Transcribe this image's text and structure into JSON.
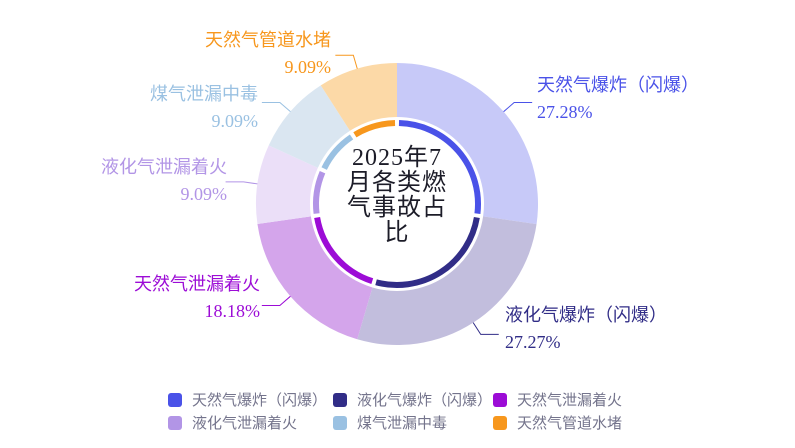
{
  "page": {
    "background": "#ffffff"
  },
  "chart_data": {
    "type": "pie",
    "subtype": "donut",
    "title": "2025年7月各类燃气事故占比",
    "title_lines": [
      "2025年7",
      "月各类燃",
      "气事故占",
      "比"
    ],
    "title_color": "#1c1c28",
    "legend_position": "bottom",
    "legend_text_color": "#74748c",
    "start_angle_deg": 0,
    "clockwise": true,
    "series": [
      {
        "name": "天然气爆炸（闪爆）",
        "value": 27.28,
        "pct_label": "27.28%",
        "color": "#4a52e8",
        "pastel": "#c7c9f8"
      },
      {
        "name": "液化气爆炸（闪爆）",
        "value": 27.27,
        "pct_label": "27.27%",
        "color": "#312d87",
        "pastel": "#c2bedd"
      },
      {
        "name": "天然气泄漏着火",
        "value": 18.18,
        "pct_label": "18.18%",
        "color": "#9c0cd6",
        "pastel": "#d4a5eb"
      },
      {
        "name": "液化气泄漏着火",
        "value": 9.09,
        "pct_label": "9.09%",
        "color": "#b295e6",
        "pastel": "#ebdff8"
      },
      {
        "name": "煤气泄漏中毒",
        "value": 9.09,
        "pct_label": "9.09%",
        "color": "#9ac1e2",
        "pastel": "#dae6f1"
      },
      {
        "name": "天然气管道水堵",
        "value": 9.09,
        "pct_label": "9.09%",
        "color": "#f7971d",
        "pastel": "#fcd9a7"
      }
    ]
  }
}
